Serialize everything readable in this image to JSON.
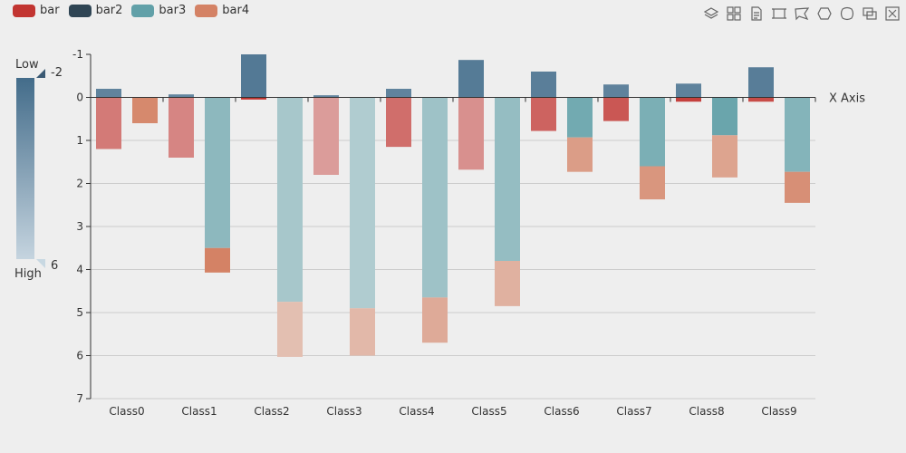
{
  "legend": [
    {
      "name": "bar",
      "color": "#c23531"
    },
    {
      "name": "bar2",
      "color": "#2f4554"
    },
    {
      "name": "bar3",
      "color": "#61a0a8"
    },
    {
      "name": "bar4",
      "color": "#d48265"
    }
  ],
  "toolbox": [
    "layers-icon",
    "grid-icon",
    "data-view-icon",
    "rect-select-icon",
    "lasso-select-icon",
    "keep-select-icon",
    "clear-select-icon",
    "zoom-icon",
    "zoom-reset-icon"
  ],
  "visual_map": {
    "low_label": "Low",
    "high_label": "High",
    "max_value": "-2",
    "min_value": "6",
    "color_dark": "#436c8a",
    "color_light": "#c5d4df"
  },
  "chart_data": {
    "type": "bar",
    "categories": [
      "Class0",
      "Class1",
      "Class2",
      "Class3",
      "Class4",
      "Class5",
      "Class6",
      "Class7",
      "Class8",
      "Class9"
    ],
    "xlabel": "X Axis",
    "ylim": [
      -1,
      7
    ],
    "yticks": [
      "-1",
      "0",
      "1",
      "2",
      "3",
      "4",
      "5",
      "6",
      "7"
    ],
    "y_inverse": true,
    "grid": true,
    "series": [
      {
        "name": "bar",
        "stack": "one",
        "values": [
          1.2,
          1.4,
          0.05,
          1.8,
          1.15,
          1.68,
          0.78,
          0.55,
          0.1,
          0.1
        ]
      },
      {
        "name": "bar2",
        "stack": "one",
        "values": [
          -0.2,
          -0.07,
          -1.0,
          -0.05,
          -0.2,
          -0.87,
          -0.6,
          -0.3,
          -0.32,
          -0.7
        ]
      },
      {
        "name": "bar3",
        "stack": "two",
        "values": [
          0,
          3.5,
          4.75,
          4.9,
          4.65,
          3.8,
          0.93,
          1.6,
          0.88,
          1.73
        ]
      },
      {
        "name": "bar4",
        "stack": "two",
        "values": [
          0.6,
          0.57,
          1.28,
          1.1,
          1.05,
          1.05,
          0.8,
          0.77,
          0.98,
          0.72
        ]
      }
    ]
  }
}
